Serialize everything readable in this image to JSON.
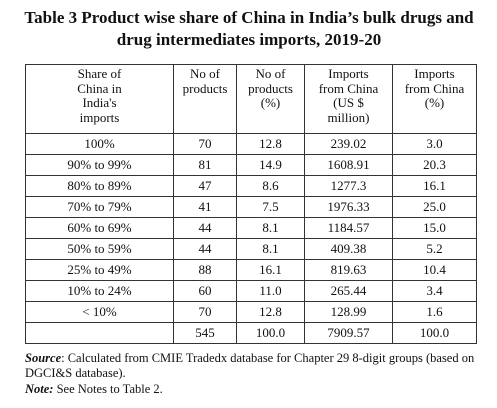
{
  "title_line1": "Table 3 Product wise share of China in India’s bulk drugs and",
  "title_line2": "drug intermediates imports, 2019-20",
  "headers": [
    [
      "Share of",
      "China in",
      "India's",
      "imports"
    ],
    [
      "No of",
      "products"
    ],
    [
      "No of",
      "products",
      "(%)"
    ],
    [
      "Imports",
      "from China",
      "(US $",
      "million)"
    ],
    [
      "Imports",
      "from China",
      "(%)"
    ]
  ],
  "rows": [
    [
      "100%",
      "70",
      "12.8",
      "239.02",
      "3.0"
    ],
    [
      "90% to 99%",
      "81",
      "14.9",
      "1608.91",
      "20.3"
    ],
    [
      "80% to 89%",
      "47",
      "8.6",
      "1277.3",
      "16.1"
    ],
    [
      "70% to 79%",
      "41",
      "7.5",
      "1976.33",
      "25.0"
    ],
    [
      "60% to 69%",
      "44",
      "8.1",
      "1184.57",
      "15.0"
    ],
    [
      "50% to 59%",
      "44",
      "8.1",
      "409.38",
      "5.2"
    ],
    [
      "25% to 49%",
      "88",
      "16.1",
      "819.63",
      "10.4"
    ],
    [
      "10% to 24%",
      "60",
      "11.0",
      "265.44",
      "3.4"
    ],
    [
      "< 10%",
      "70",
      "12.8",
      "128.99",
      "1.6"
    ],
    [
      "",
      "545",
      "100.0",
      "7909.57",
      "100.0"
    ]
  ],
  "source_label": "Source",
  "source_text": ": Calculated from CMIE Tradedx database for Chapter 29 8-digit groups (based on DGCI&S  database).",
  "note_label": "Note:",
  "note_text": " See Notes to Table 2."
}
